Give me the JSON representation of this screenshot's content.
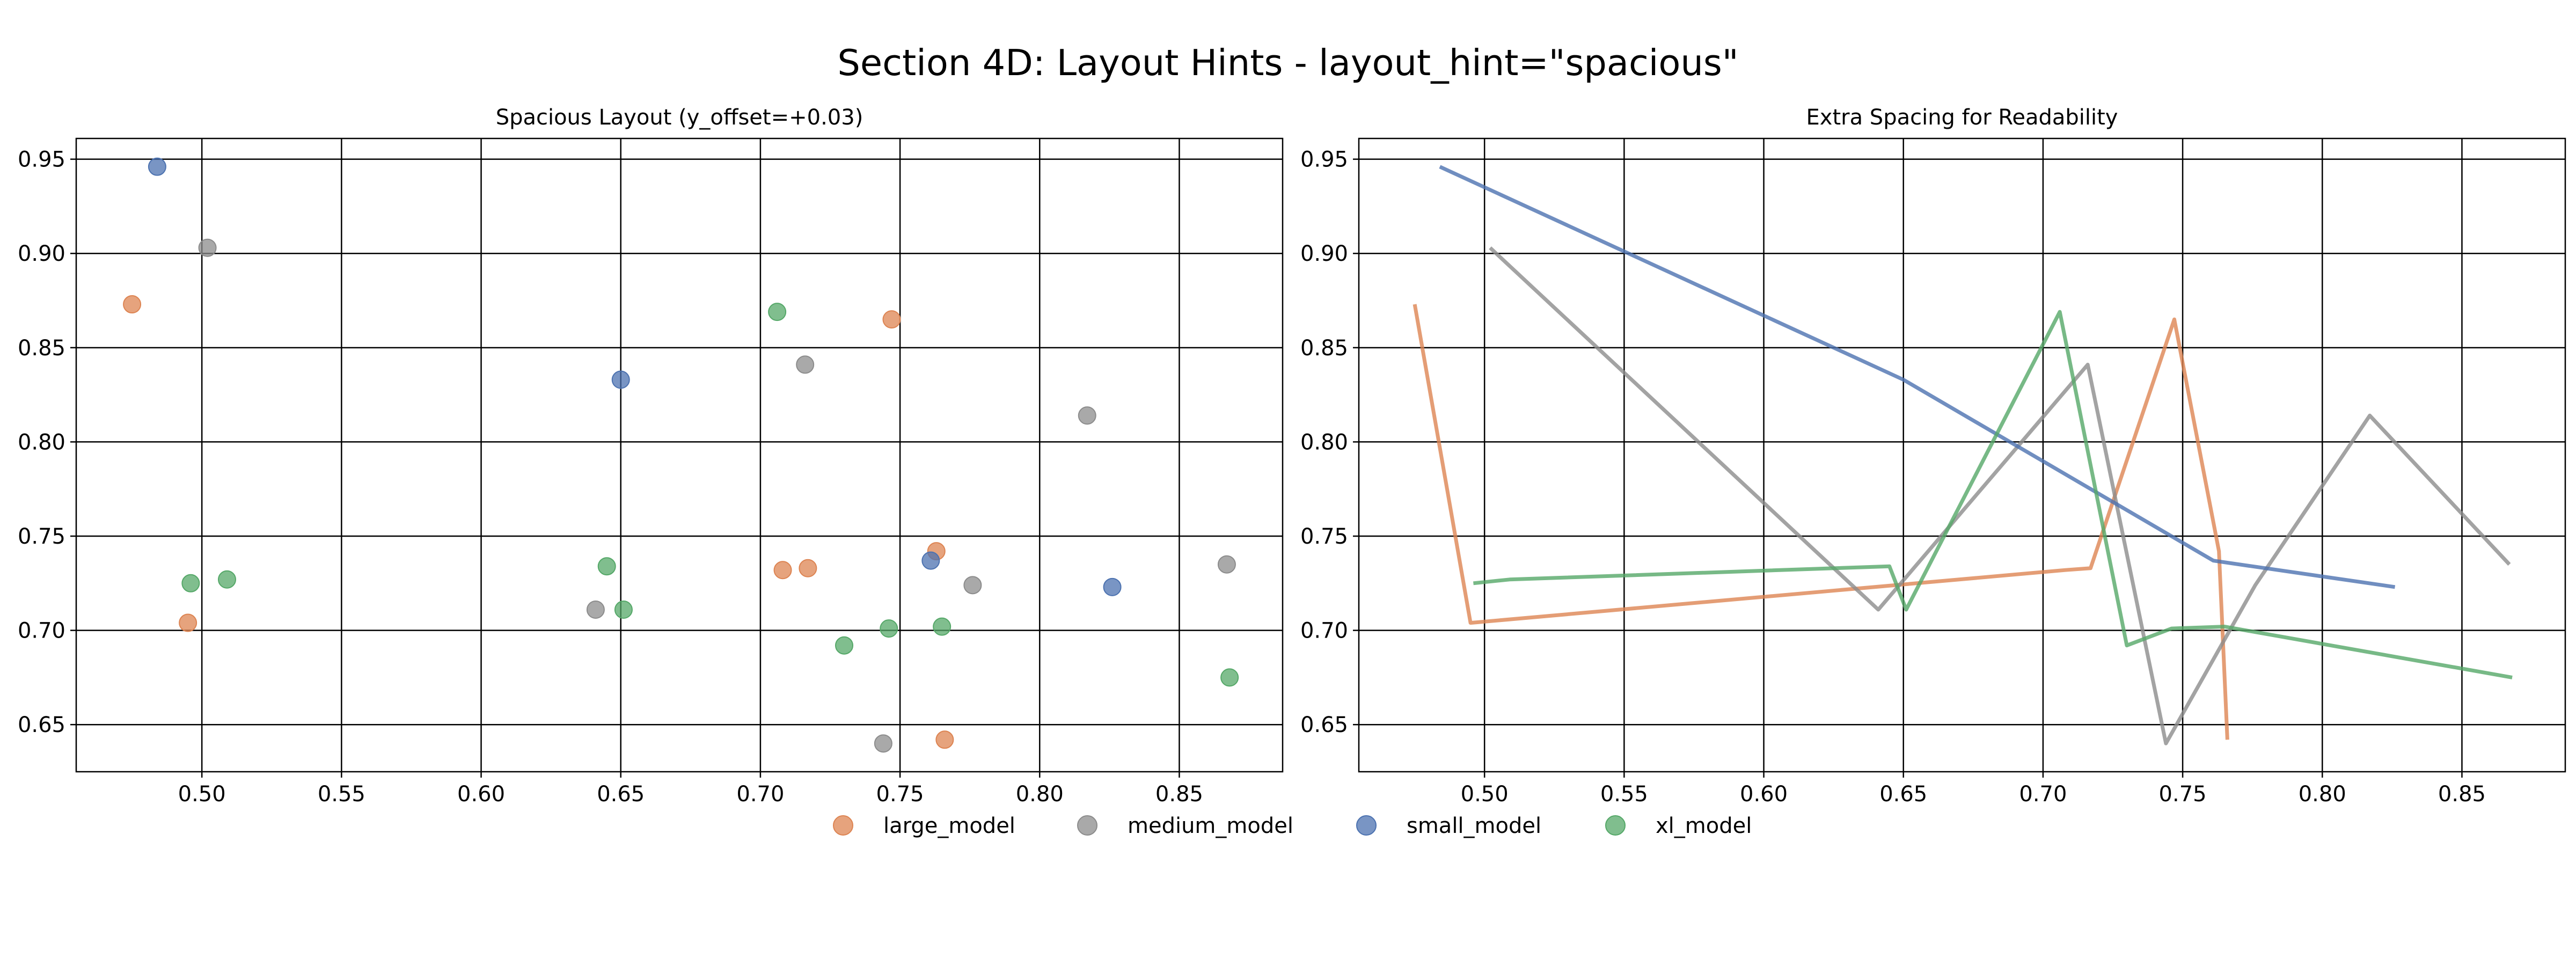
{
  "figure": {
    "title": "Section 4D: Layout Hints - layout_hint=\"spacious\"",
    "legend_position": "bottom-center",
    "legend": [
      {
        "name": "large_model",
        "color": "#DD8452"
      },
      {
        "name": "medium_model",
        "color": "#8C8C8C"
      },
      {
        "name": "small_model",
        "color": "#4C72B0"
      },
      {
        "name": "xl_model",
        "color": "#55A868"
      }
    ]
  },
  "chart_data": [
    {
      "type": "scatter",
      "title": "Spacious Layout (y_offset=+0.03)",
      "xlabel": "",
      "ylabel": "",
      "xlim": [
        0.455,
        0.887
      ],
      "ylim": [
        0.625,
        0.961
      ],
      "xticks": [
        0.5,
        0.55,
        0.6,
        0.65,
        0.7,
        0.75,
        0.8,
        0.85
      ],
      "yticks": [
        0.65,
        0.7,
        0.75,
        0.8,
        0.85,
        0.9,
        0.95
      ],
      "xtick_labels": [
        "0.50",
        "0.55",
        "0.60",
        "0.65",
        "0.70",
        "0.75",
        "0.80",
        "0.85"
      ],
      "ytick_labels": [
        "0.65",
        "0.70",
        "0.75",
        "0.80",
        "0.85",
        "0.90",
        "0.95"
      ],
      "grid": true,
      "series": [
        {
          "name": "large_model",
          "color": "#DD8452",
          "points": [
            [
              0.475,
              0.873
            ],
            [
              0.495,
              0.704
            ],
            [
              0.708,
              0.732
            ],
            [
              0.717,
              0.733
            ],
            [
              0.747,
              0.865
            ],
            [
              0.763,
              0.742
            ],
            [
              0.766,
              0.642
            ]
          ]
        },
        {
          "name": "medium_model",
          "color": "#8C8C8C",
          "points": [
            [
              0.502,
              0.903
            ],
            [
              0.641,
              0.711
            ],
            [
              0.716,
              0.841
            ],
            [
              0.744,
              0.64
            ],
            [
              0.776,
              0.724
            ],
            [
              0.817,
              0.814
            ],
            [
              0.867,
              0.735
            ]
          ]
        },
        {
          "name": "small_model",
          "color": "#4C72B0",
          "points": [
            [
              0.484,
              0.946
            ],
            [
              0.65,
              0.833
            ],
            [
              0.761,
              0.737
            ],
            [
              0.826,
              0.723
            ]
          ]
        },
        {
          "name": "xl_model",
          "color": "#55A868",
          "points": [
            [
              0.496,
              0.725
            ],
            [
              0.509,
              0.727
            ],
            [
              0.645,
              0.734
            ],
            [
              0.651,
              0.711
            ],
            [
              0.706,
              0.869
            ],
            [
              0.73,
              0.692
            ],
            [
              0.746,
              0.701
            ],
            [
              0.765,
              0.702
            ],
            [
              0.868,
              0.675
            ]
          ]
        }
      ]
    },
    {
      "type": "line",
      "title": "Extra Spacing for Readability",
      "xlabel": "",
      "ylabel": "",
      "xlim": [
        0.455,
        0.887
      ],
      "ylim": [
        0.625,
        0.961
      ],
      "xticks": [
        0.5,
        0.55,
        0.6,
        0.65,
        0.7,
        0.75,
        0.8,
        0.85
      ],
      "yticks": [
        0.65,
        0.7,
        0.75,
        0.8,
        0.85,
        0.9,
        0.95
      ],
      "xtick_labels": [
        "0.50",
        "0.55",
        "0.60",
        "0.65",
        "0.70",
        "0.75",
        "0.80",
        "0.85"
      ],
      "ytick_labels": [
        "0.65",
        "0.70",
        "0.75",
        "0.80",
        "0.85",
        "0.90",
        "0.95"
      ],
      "grid": true,
      "series": [
        {
          "name": "large_model",
          "color": "#DD8452",
          "points": [
            [
              0.475,
              0.873
            ],
            [
              0.495,
              0.704
            ],
            [
              0.708,
              0.732
            ],
            [
              0.717,
              0.733
            ],
            [
              0.747,
              0.865
            ],
            [
              0.763,
              0.742
            ],
            [
              0.766,
              0.642
            ]
          ]
        },
        {
          "name": "medium_model",
          "color": "#8C8C8C",
          "points": [
            [
              0.502,
              0.903
            ],
            [
              0.641,
              0.711
            ],
            [
              0.716,
              0.841
            ],
            [
              0.744,
              0.64
            ],
            [
              0.776,
              0.724
            ],
            [
              0.817,
              0.814
            ],
            [
              0.867,
              0.735
            ]
          ]
        },
        {
          "name": "small_model",
          "color": "#4C72B0",
          "points": [
            [
              0.484,
              0.946
            ],
            [
              0.65,
              0.833
            ],
            [
              0.761,
              0.737
            ],
            [
              0.826,
              0.723
            ]
          ]
        },
        {
          "name": "xl_model",
          "color": "#55A868",
          "points": [
            [
              0.496,
              0.725
            ],
            [
              0.509,
              0.727
            ],
            [
              0.645,
              0.734
            ],
            [
              0.651,
              0.711
            ],
            [
              0.706,
              0.869
            ],
            [
              0.73,
              0.692
            ],
            [
              0.746,
              0.701
            ],
            [
              0.765,
              0.702
            ],
            [
              0.868,
              0.675
            ]
          ]
        }
      ]
    }
  ]
}
